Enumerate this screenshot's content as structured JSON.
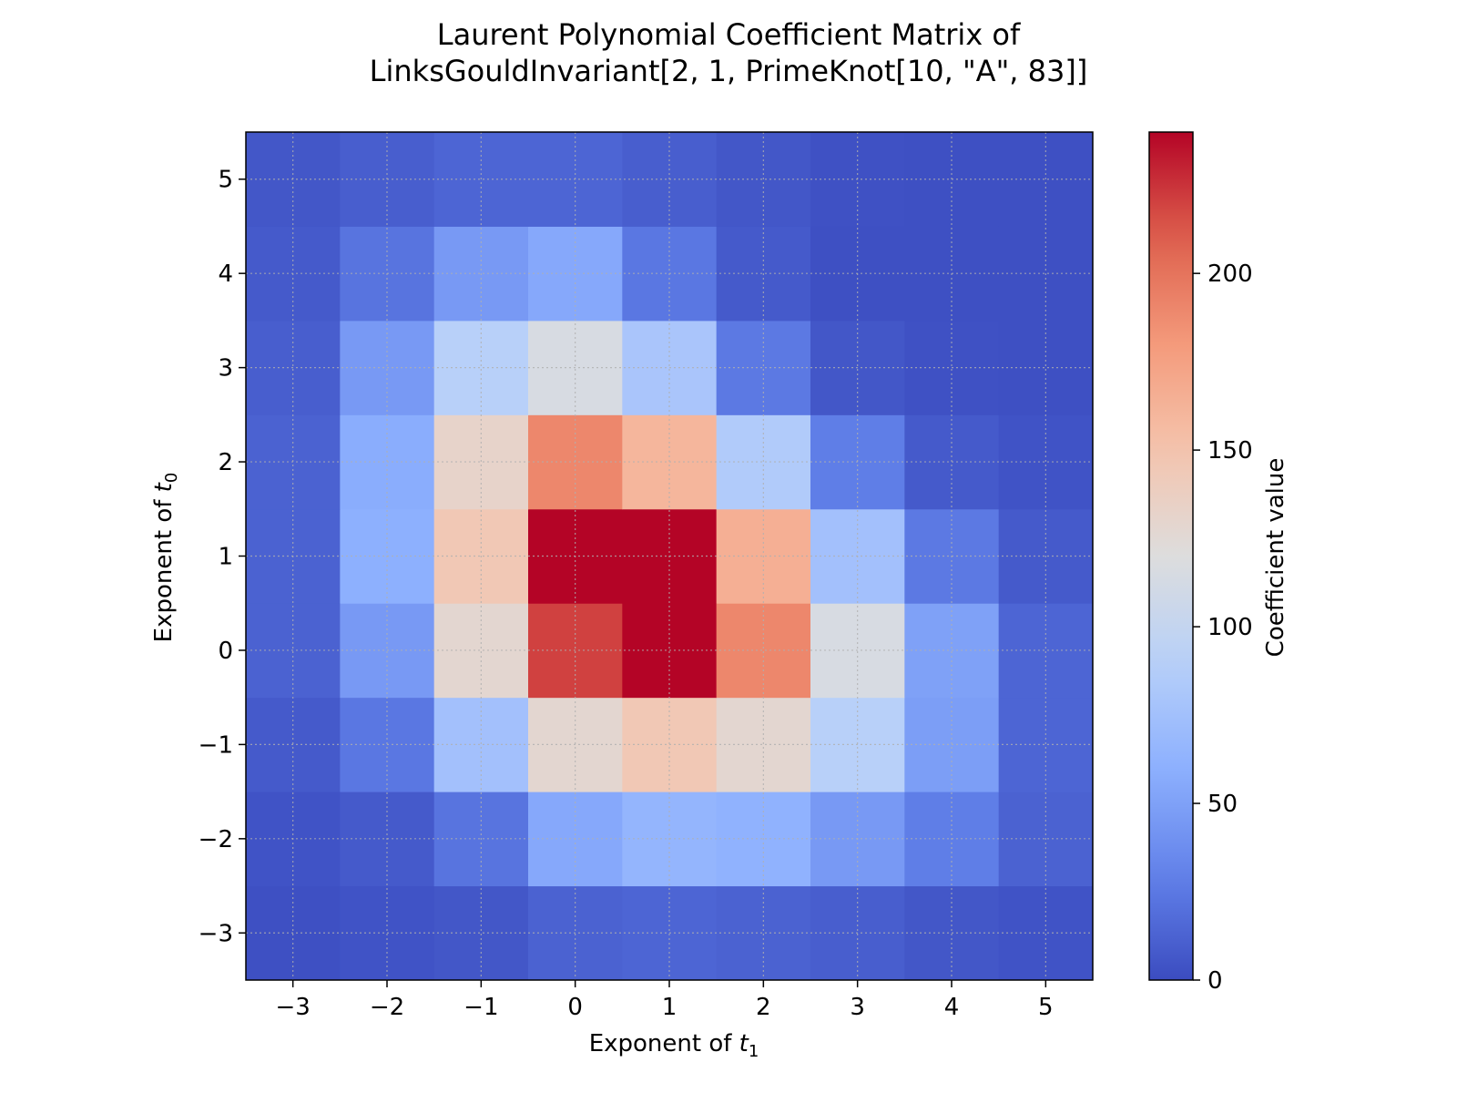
{
  "chart_data": {
    "type": "heatmap",
    "title_line1": "Laurent Polynomial Coefficient Matrix of",
    "title_line2": "LinksGouldInvariant[2, 1, PrimeKnot[10, \"A\", 83]]",
    "xlabel_text": "Exponent of ",
    "xlabel_var": "t",
    "xlabel_sub": "1",
    "ylabel_text": "Exponent of ",
    "ylabel_var": "t",
    "ylabel_sub": "0",
    "colorbar_label": "Coefficient value",
    "colormap": "coolwarm",
    "x": [
      -3,
      -2,
      -1,
      0,
      1,
      2,
      3,
      4,
      5
    ],
    "y": [
      -3,
      -2,
      -1,
      0,
      1,
      2,
      3,
      4,
      5
    ],
    "x_tick_labels": [
      "−3",
      "−2",
      "−1",
      "0",
      "1",
      "2",
      "3",
      "4",
      "5"
    ],
    "y_tick_labels": [
      "−3",
      "−2",
      "−1",
      "0",
      "1",
      "2",
      "3",
      "4",
      "5"
    ],
    "colorbar_ticks": [
      0,
      50,
      100,
      150,
      200
    ],
    "colorbar_tick_labels": [
      "0",
      "50",
      "100",
      "150",
      "200"
    ],
    "vmin": 0,
    "vmax": 240,
    "xlim": [
      -3.5,
      5.5
    ],
    "ylim": [
      -3.5,
      5.5
    ],
    "grid": true,
    "values_by_row_y_ascending": [
      [
        2,
        4,
        6,
        12,
        14,
        12,
        10,
        6,
        4
      ],
      [
        4,
        8,
        22,
        55,
        65,
        62,
        45,
        28,
        12
      ],
      [
        8,
        24,
        75,
        128,
        145,
        128,
        90,
        48,
        14
      ],
      [
        12,
        45,
        128,
        220,
        240,
        190,
        115,
        50,
        14
      ],
      [
        12,
        60,
        145,
        240,
        240,
        165,
        75,
        25,
        8
      ],
      [
        12,
        58,
        132,
        190,
        160,
        85,
        28,
        8,
        4
      ],
      [
        10,
        45,
        90,
        115,
        80,
        25,
        6,
        3,
        2
      ],
      [
        8,
        22,
        45,
        55,
        24,
        8,
        2,
        2,
        2
      ],
      [
        6,
        10,
        14,
        14,
        10,
        6,
        3,
        2,
        2
      ]
    ]
  }
}
